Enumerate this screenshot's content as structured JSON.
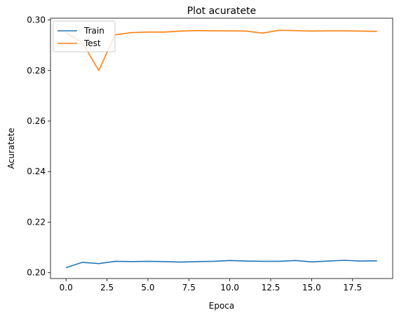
{
  "chart_data": {
    "type": "line",
    "title": "Plot acuratete",
    "xlabel": "Epoca",
    "ylabel": "Acuratete",
    "xlim": [
      -0.95,
      19.95
    ],
    "ylim": [
      0.1977,
      0.3007
    ],
    "xticks": [
      0.0,
      2.5,
      5.0,
      7.5,
      10.0,
      12.5,
      15.0,
      17.5
    ],
    "xtick_labels": [
      "0.0",
      "2.5",
      "5.0",
      "7.5",
      "10.0",
      "12.5",
      "15.0",
      "17.5"
    ],
    "yticks": [
      0.2,
      0.22,
      0.24,
      0.26,
      0.28,
      0.3
    ],
    "ytick_labels": [
      "0.20",
      "0.22",
      "0.24",
      "0.26",
      "0.28",
      "0.30"
    ],
    "grid": false,
    "legend_position": "top-left",
    "x": [
      0,
      1,
      2,
      3,
      4,
      5,
      6,
      7,
      8,
      9,
      10,
      11,
      12,
      13,
      14,
      15,
      16,
      17,
      18,
      19
    ],
    "series": [
      {
        "name": "Train",
        "color": "#1f77b4",
        "values": [
          0.202,
          0.2041,
          0.2036,
          0.2045,
          0.2044,
          0.2045,
          0.2044,
          0.2042,
          0.2044,
          0.2045,
          0.2048,
          0.2046,
          0.2045,
          0.2045,
          0.2048,
          0.2043,
          0.2046,
          0.2049,
          0.2046,
          0.2047
        ]
      },
      {
        "name": "Test",
        "color": "#ff7f0e",
        "values": [
          0.295,
          0.291,
          0.28,
          0.2941,
          0.295,
          0.2952,
          0.2952,
          0.2956,
          0.2958,
          0.2957,
          0.2957,
          0.2956,
          0.2948,
          0.2959,
          0.2958,
          0.2956,
          0.2957,
          0.2957,
          0.2956,
          0.2955
        ]
      }
    ]
  }
}
